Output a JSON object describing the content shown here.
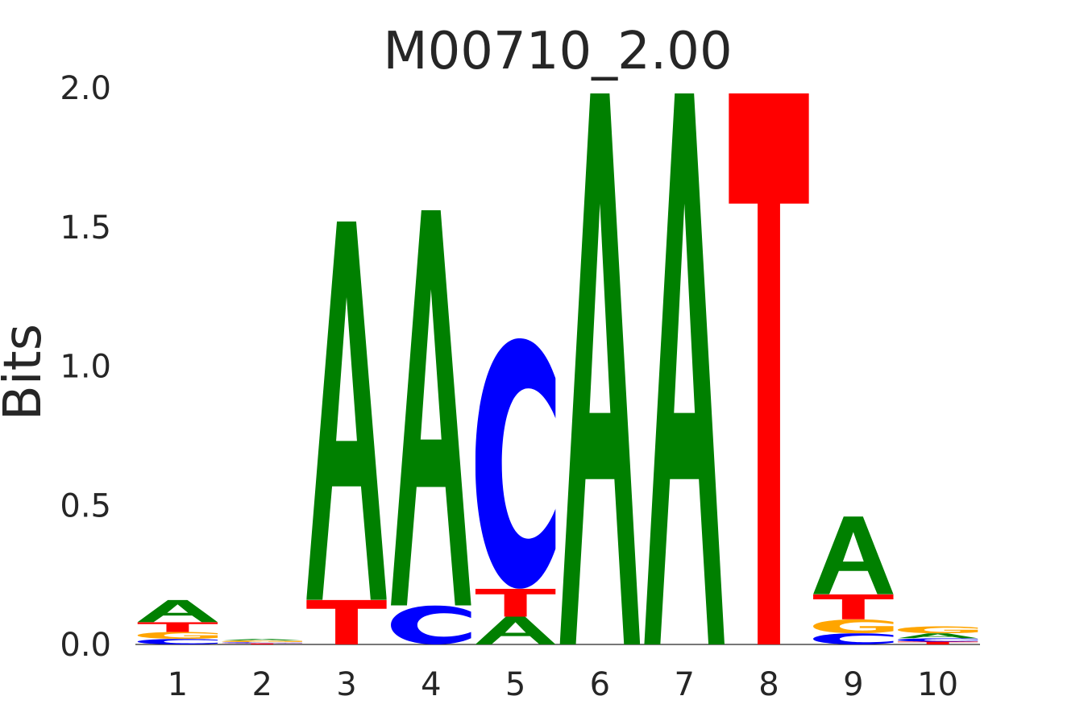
{
  "chart_data": {
    "type": "sequence-logo",
    "title": "M00710_2.00",
    "ylabel": "Bits",
    "xlabel": "",
    "ylim": [
      0,
      2.0
    ],
    "yticks": [
      "0.0",
      "0.5",
      "1.0",
      "1.5",
      "2.0"
    ],
    "positions": [
      "1",
      "2",
      "3",
      "4",
      "5",
      "6",
      "7",
      "8",
      "9",
      "10"
    ],
    "colors": {
      "A": "#008000",
      "C": "#0000ff",
      "G": "#ffa500",
      "T": "#ff0000"
    },
    "stacks": [
      [
        {
          "base": "C",
          "bits": 0.02
        },
        {
          "base": "G",
          "bits": 0.025
        },
        {
          "base": "T",
          "bits": 0.035
        },
        {
          "base": "A",
          "bits": 0.08
        }
      ],
      [
        {
          "base": "T",
          "bits": 0.004
        },
        {
          "base": "C",
          "bits": 0.004
        },
        {
          "base": "G",
          "bits": 0.006
        },
        {
          "base": "A",
          "bits": 0.006
        }
      ],
      [
        {
          "base": "T",
          "bits": 0.16
        },
        {
          "base": "A",
          "bits": 1.36
        }
      ],
      [
        {
          "base": "C",
          "bits": 0.14
        },
        {
          "base": "A",
          "bits": 1.42
        }
      ],
      [
        {
          "base": "A",
          "bits": 0.1
        },
        {
          "base": "T",
          "bits": 0.1
        },
        {
          "base": "C",
          "bits": 0.9
        }
      ],
      [
        {
          "base": "A",
          "bits": 1.98
        }
      ],
      [
        {
          "base": "A",
          "bits": 1.98
        }
      ],
      [
        {
          "base": "T",
          "bits": 1.98
        }
      ],
      [
        {
          "base": "C",
          "bits": 0.04
        },
        {
          "base": "G",
          "bits": 0.05
        },
        {
          "base": "T",
          "bits": 0.09
        },
        {
          "base": "A",
          "bits": 0.28
        }
      ],
      [
        {
          "base": "T",
          "bits": 0.01
        },
        {
          "base": "C",
          "bits": 0.012
        },
        {
          "base": "A",
          "bits": 0.018
        },
        {
          "base": "G",
          "bits": 0.025
        }
      ]
    ]
  }
}
